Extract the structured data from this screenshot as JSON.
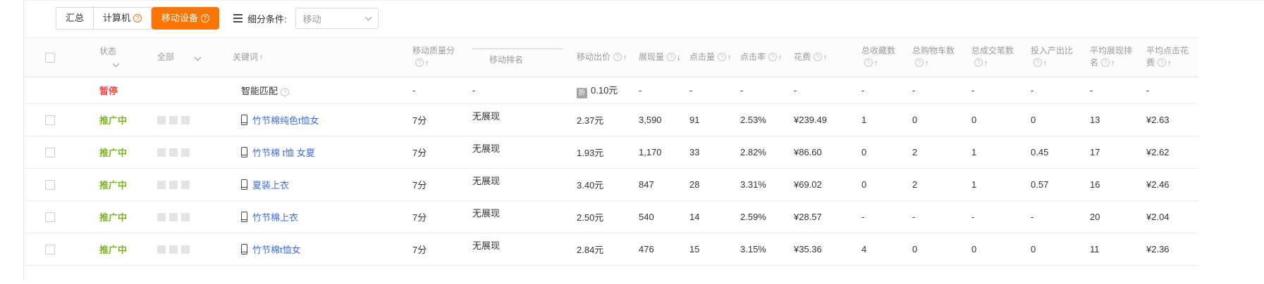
{
  "toolbar": {
    "tabs": [
      {
        "id": "summary",
        "label": "汇总",
        "active": false,
        "help": false
      },
      {
        "id": "computer",
        "label": "计算机",
        "active": false,
        "help": true
      },
      {
        "id": "mobile",
        "label": "移动设备",
        "active": true,
        "help": true
      }
    ],
    "segment_label": "细分条件:",
    "segment_value": "移动"
  },
  "icons": {
    "help_glyph": "?",
    "sort_up_glyph": "↑",
    "sort_down_glyph": "↓"
  },
  "table": {
    "columns": [
      {
        "key": "select",
        "label": "",
        "type": "checkbox"
      },
      {
        "key": "status",
        "label": "状态",
        "chevron": true
      },
      {
        "key": "scope",
        "label": "全部",
        "chevron": true
      },
      {
        "key": "keyword",
        "label": "关键词",
        "sort": "up"
      },
      {
        "key": "quality",
        "label": "移动质量分",
        "help": true,
        "sort": "up"
      },
      {
        "key": "rank",
        "label": "移动排名",
        "overline": true
      },
      {
        "key": "bid",
        "label": "移动出价",
        "help": true,
        "sort": "up"
      },
      {
        "key": "impressions",
        "label": "展现量",
        "help": true,
        "sort": "down",
        "sort_active": true
      },
      {
        "key": "clicks",
        "label": "点击量",
        "help": true,
        "sort": "up"
      },
      {
        "key": "ctr",
        "label": "点击率",
        "help": true,
        "sort": "up"
      },
      {
        "key": "cost",
        "label": "花费",
        "help": true,
        "sort": "up"
      },
      {
        "key": "favorites",
        "label": "总收藏数",
        "help": true,
        "sort": "up"
      },
      {
        "key": "carts",
        "label": "总购物车数",
        "help": true,
        "sort": "up"
      },
      {
        "key": "orders",
        "label": "总成交笔数",
        "help": true,
        "sort": "up"
      },
      {
        "key": "roi",
        "label": "投入产出比",
        "help": true,
        "sort": "up"
      },
      {
        "key": "avg_rank",
        "label": "平均展现排名",
        "help": true,
        "sort": "up"
      },
      {
        "key": "avg_cpc",
        "label": "平均点击花费",
        "help": true,
        "sort": "up"
      }
    ],
    "rows": [
      {
        "type": "smart",
        "checkbox": false,
        "squares": false,
        "status": "暂停",
        "status_type": "paused",
        "keyword": "智能匹配",
        "quality": "-",
        "rank": "-",
        "bid_badge": "折",
        "bid": "0.10元",
        "impressions": "-",
        "clicks": "-",
        "ctr": "-",
        "cost": "-",
        "favorites": "-",
        "carts": "-",
        "orders": "-",
        "roi": "-",
        "avg_rank": "-",
        "avg_cpc": "-"
      },
      {
        "type": "keyword",
        "checkbox": true,
        "squares": true,
        "status": "推广中",
        "status_type": "active",
        "keyword": "竹节棉纯色t恤女",
        "quality": "7分",
        "rank": "无展现",
        "bid": "2.37元",
        "impressions": "3,590",
        "clicks": "91",
        "ctr": "2.53%",
        "cost": "¥239.49",
        "favorites": "1",
        "carts": "0",
        "orders": "0",
        "roi": "0",
        "avg_rank": "13",
        "avg_cpc": "¥2.63"
      },
      {
        "type": "keyword",
        "checkbox": true,
        "squares": true,
        "status": "推广中",
        "status_type": "active",
        "keyword": "竹节棉 t恤 女夏",
        "quality": "7分",
        "rank": "无展现",
        "bid": "1.93元",
        "impressions": "1,170",
        "clicks": "33",
        "ctr": "2.82%",
        "cost": "¥86.60",
        "favorites": "0",
        "carts": "2",
        "orders": "1",
        "roi": "0.45",
        "avg_rank": "17",
        "avg_cpc": "¥2.62"
      },
      {
        "type": "keyword",
        "checkbox": true,
        "squares": true,
        "status": "推广中",
        "status_type": "active",
        "keyword": "夏装上衣",
        "quality": "7分",
        "rank": "无展现",
        "bid": "3.40元",
        "impressions": "847",
        "clicks": "28",
        "ctr": "3.31%",
        "cost": "¥69.02",
        "favorites": "0",
        "carts": "2",
        "orders": "1",
        "roi": "0.57",
        "avg_rank": "16",
        "avg_cpc": "¥2.46"
      },
      {
        "type": "keyword",
        "checkbox": true,
        "squares": true,
        "status": "推广中",
        "status_type": "active",
        "keyword": "竹节棉上衣",
        "quality": "7分",
        "rank": "无展现",
        "bid": "2.50元",
        "impressions": "540",
        "clicks": "14",
        "ctr": "2.59%",
        "cost": "¥28.57",
        "favorites": "-",
        "carts": "-",
        "orders": "-",
        "roi": "-",
        "avg_rank": "20",
        "avg_cpc": "¥2.04"
      },
      {
        "type": "keyword",
        "checkbox": true,
        "squares": true,
        "status": "推广中",
        "status_type": "active",
        "keyword": "竹节棉t恤女",
        "quality": "7分",
        "rank": "无展现",
        "bid": "2.84元",
        "impressions": "476",
        "clicks": "15",
        "ctr": "3.15%",
        "cost": "¥35.36",
        "favorites": "4",
        "carts": "0",
        "orders": "0",
        "roi": "0",
        "avg_rank": "11",
        "avg_cpc": "¥2.36"
      }
    ]
  },
  "colors": {
    "accent_orange": "#ff7300",
    "status_paused": "#f5483d",
    "status_active": "#7db522",
    "link_blue": "#3d6ed9",
    "sort_active_blue": "#2f7af7"
  }
}
